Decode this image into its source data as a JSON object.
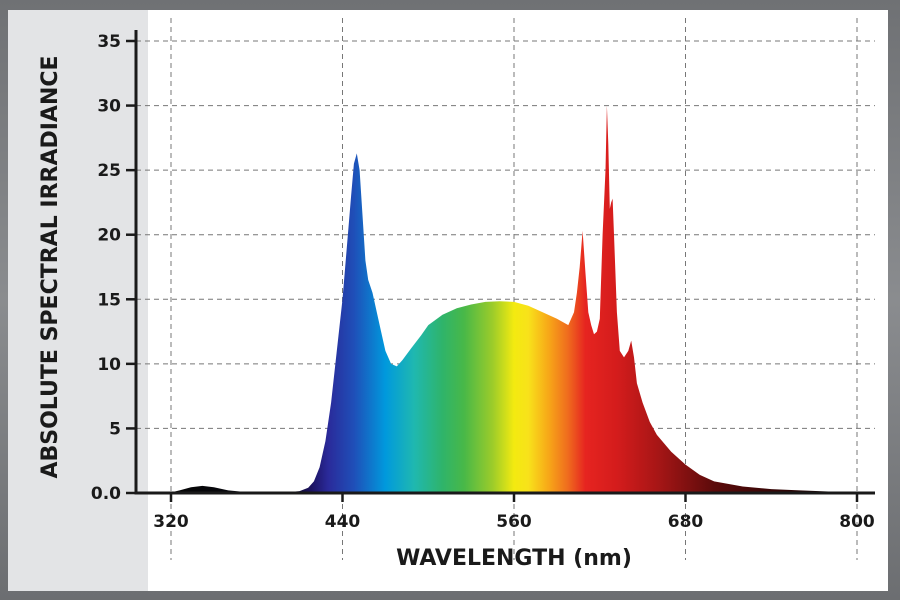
{
  "chart_data": {
    "type": "area",
    "title": "",
    "xlabel": "WAVELENGTH (nm)",
    "ylabel": "ABSOLUTE SPECTRAL IRRADIANCE",
    "xlim": [
      320,
      800
    ],
    "ylim": [
      0,
      35
    ],
    "x_ticks": [
      320,
      440,
      560,
      680,
      800
    ],
    "x_tick_labels": [
      "320",
      "440",
      "560",
      "680",
      "800"
    ],
    "y_ticks": [
      0,
      5,
      10,
      15,
      20,
      25,
      30,
      35
    ],
    "y_tick_labels": [
      "0.0",
      "5",
      "10",
      "15",
      "20",
      "25",
      "30",
      "35"
    ],
    "grid": true,
    "legend": "none",
    "series": [
      {
        "fill": "visible-spectrum gradient",
        "points": [
          [
            320,
            0.05
          ],
          [
            326,
            0.2
          ],
          [
            334,
            0.45
          ],
          [
            342,
            0.55
          ],
          [
            350,
            0.45
          ],
          [
            360,
            0.2
          ],
          [
            372,
            0.08
          ],
          [
            385,
            0.03
          ],
          [
            400,
            0.05
          ],
          [
            410,
            0.15
          ],
          [
            416,
            0.4
          ],
          [
            420,
            0.9
          ],
          [
            424,
            2.0
          ],
          [
            428,
            4.0
          ],
          [
            432,
            7.0
          ],
          [
            436,
            11.0
          ],
          [
            440,
            15.0
          ],
          [
            443,
            19.0
          ],
          [
            446,
            23.0
          ],
          [
            448,
            25.5
          ],
          [
            450,
            26.3
          ],
          [
            452,
            25.0
          ],
          [
            454,
            21.5
          ],
          [
            456,
            18.0
          ],
          [
            458,
            16.5
          ],
          [
            461,
            15.5
          ],
          [
            464,
            14.0
          ],
          [
            467,
            12.5
          ],
          [
            470,
            11.0
          ],
          [
            474,
            10.0
          ],
          [
            478,
            9.8
          ],
          [
            482,
            10.3
          ],
          [
            488,
            11.2
          ],
          [
            495,
            12.2
          ],
          [
            500,
            13.0
          ],
          [
            510,
            13.8
          ],
          [
            520,
            14.3
          ],
          [
            530,
            14.6
          ],
          [
            540,
            14.8
          ],
          [
            550,
            14.85
          ],
          [
            560,
            14.8
          ],
          [
            570,
            14.5
          ],
          [
            580,
            14.0
          ],
          [
            590,
            13.5
          ],
          [
            598,
            13.0
          ],
          [
            602,
            14.0
          ],
          [
            604,
            15.5
          ],
          [
            606,
            17.5
          ],
          [
            608,
            20.3
          ],
          [
            610,
            17.0
          ],
          [
            612,
            14.0
          ],
          [
            614,
            13.0
          ],
          [
            616,
            12.3
          ],
          [
            618,
            12.5
          ],
          [
            620,
            13.5
          ],
          [
            622,
            20.0
          ],
          [
            624,
            25.0
          ],
          [
            625,
            30.0
          ],
          [
            626,
            27.0
          ],
          [
            627,
            22.0
          ],
          [
            628,
            22.5
          ],
          [
            629,
            22.8
          ],
          [
            630,
            20.0
          ],
          [
            632,
            14.0
          ],
          [
            634,
            11.0
          ],
          [
            637,
            10.5
          ],
          [
            640,
            11.0
          ],
          [
            642,
            11.8
          ],
          [
            644,
            10.5
          ],
          [
            646,
            8.5
          ],
          [
            650,
            7.0
          ],
          [
            655,
            5.5
          ],
          [
            660,
            4.5
          ],
          [
            670,
            3.2
          ],
          [
            680,
            2.2
          ],
          [
            690,
            1.4
          ],
          [
            700,
            0.9
          ],
          [
            720,
            0.5
          ],
          [
            740,
            0.3
          ],
          [
            760,
            0.2
          ],
          [
            780,
            0.12
          ],
          [
            800,
            0.05
          ]
        ]
      }
    ]
  },
  "colors": {
    "axis": "#1a1a1a",
    "grid": "#777777",
    "frame": "#7b7d80",
    "left_strip": "#e3e4e6",
    "panel": "#ffffff",
    "gradient_stops": [
      {
        "nm": 320,
        "color": "#050505"
      },
      {
        "nm": 400,
        "color": "#0a0a14"
      },
      {
        "nm": 418,
        "color": "#1c1260"
      },
      {
        "nm": 430,
        "color": "#2a2a9a"
      },
      {
        "nm": 448,
        "color": "#1f4fb8"
      },
      {
        "nm": 470,
        "color": "#0099dd"
      },
      {
        "nm": 490,
        "color": "#1fb8b0"
      },
      {
        "nm": 510,
        "color": "#2fb46a"
      },
      {
        "nm": 525,
        "color": "#48b848"
      },
      {
        "nm": 545,
        "color": "#9ccc2a"
      },
      {
        "nm": 560,
        "color": "#f3ea10"
      },
      {
        "nm": 570,
        "color": "#f8e21a"
      },
      {
        "nm": 585,
        "color": "#f7a418"
      },
      {
        "nm": 598,
        "color": "#ef6a1e"
      },
      {
        "nm": 610,
        "color": "#e62420"
      },
      {
        "nm": 632,
        "color": "#d41c1c"
      },
      {
        "nm": 660,
        "color": "#a81616"
      },
      {
        "nm": 700,
        "color": "#5c0b0b"
      },
      {
        "nm": 760,
        "color": "#250404"
      },
      {
        "nm": 800,
        "color": "#0a0000"
      }
    ]
  }
}
